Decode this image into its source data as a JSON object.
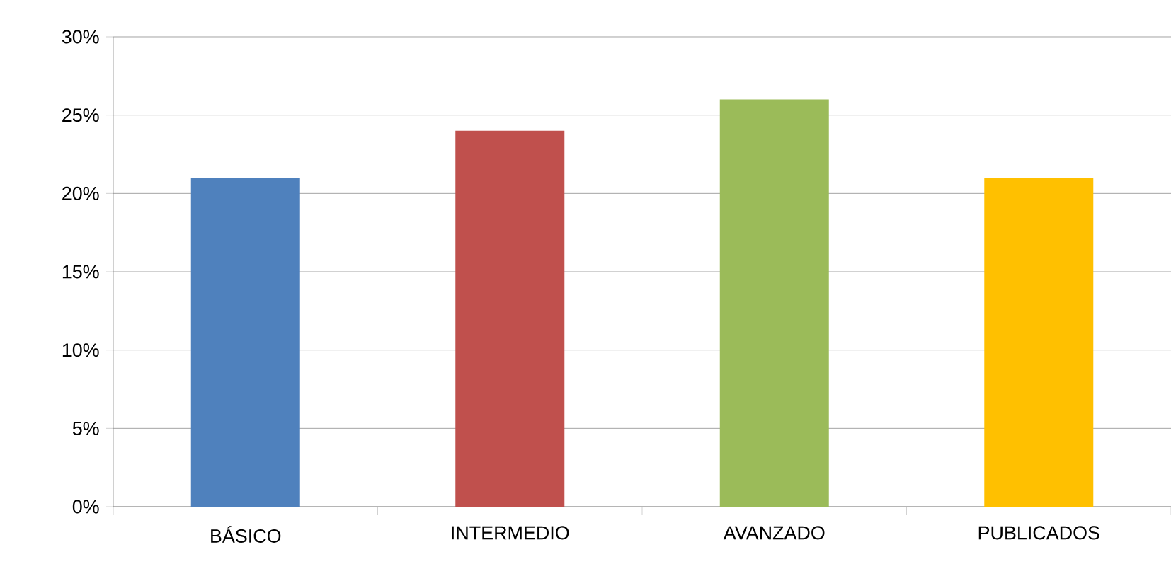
{
  "chart_data": {
    "type": "bar",
    "categories": [
      "BÁSICO",
      "INTERMEDIO",
      "AVANZADO",
      "PUBLICADOS"
    ],
    "values": [
      21,
      24,
      26,
      21
    ],
    "colors": [
      "#4f81bd",
      "#c0504d",
      "#9bbb59",
      "#ffc000"
    ],
    "ylim": [
      0,
      30
    ],
    "yticks": [
      {
        "value": 0,
        "label": "0%"
      },
      {
        "value": 5,
        "label": "5%"
      },
      {
        "value": 10,
        "label": "10%"
      },
      {
        "value": 15,
        "label": "15%"
      },
      {
        "value": 20,
        "label": "20%"
      },
      {
        "value": 25,
        "label": "25%"
      },
      {
        "value": 30,
        "label": "30%"
      }
    ],
    "grid": "y"
  }
}
